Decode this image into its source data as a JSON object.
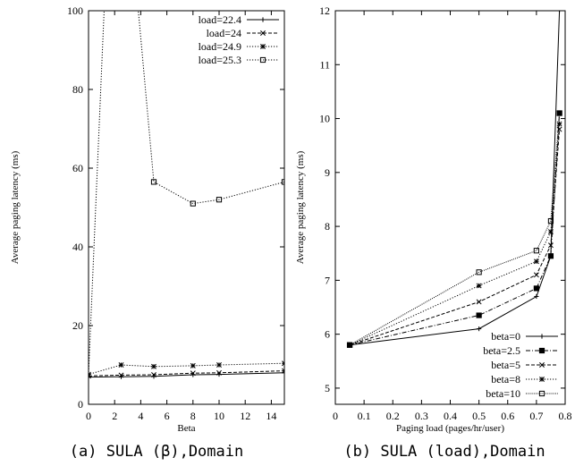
{
  "chart_data": [
    {
      "type": "line",
      "caption": "(a) SULA (β),Domain",
      "xlabel": "Beta",
      "ylabel": "Average paging latency (ms)",
      "xlim": [
        0,
        15
      ],
      "ylim": [
        0,
        100
      ],
      "xticks": [
        0,
        2,
        4,
        6,
        8,
        10,
        12,
        14
      ],
      "yticks": [
        0,
        20,
        40,
        60,
        80,
        100
      ],
      "grid": false,
      "legend_position": "top-right",
      "series": [
        {
          "name": "load=22.4",
          "marker": "plus",
          "dash": "solid",
          "x": [
            0,
            2.5,
            5,
            8,
            10,
            15
          ],
          "y": [
            6.9,
            7.0,
            7.1,
            7.5,
            7.6,
            8.0
          ]
        },
        {
          "name": "load=24",
          "marker": "cross",
          "dash": "dashed",
          "x": [
            0,
            2.5,
            5,
            8,
            10,
            15
          ],
          "y": [
            7.2,
            7.4,
            7.5,
            7.9,
            8.0,
            8.5
          ]
        },
        {
          "name": "load=24.9",
          "marker": "star",
          "dash": "dotted",
          "x": [
            0,
            2.5,
            5,
            8,
            10,
            15
          ],
          "y": [
            7.6,
            10.0,
            9.6,
            9.8,
            10.0,
            10.4
          ]
        },
        {
          "name": "load=25.3",
          "marker": "square",
          "dash": "dotted",
          "x": [
            5,
            8,
            10,
            15
          ],
          "y": [
            56.5,
            51.0,
            52.0,
            56.5
          ]
        }
      ]
    },
    {
      "type": "line",
      "caption": "(b) SULA (load),Domain",
      "xlabel": "Paging load (pages/hr/user)",
      "ylabel": "Average paging latency (ms)",
      "xlim": [
        0,
        0.8
      ],
      "ylim": [
        4.7,
        12
      ],
      "xticks": [
        0,
        0.1,
        0.2,
        0.3,
        0.4,
        0.5,
        0.6,
        0.7,
        0.8
      ],
      "yticks": [
        5,
        6,
        7,
        8,
        9,
        10,
        11,
        12
      ],
      "grid": false,
      "legend_position": "bottom-right",
      "series": [
        {
          "name": "beta=0",
          "marker": "plus",
          "dash": "solid",
          "x": [
            0.05,
            0.5,
            0.7,
            0.75,
            0.78
          ],
          "y": [
            5.8,
            6.1,
            6.7,
            7.45,
            12.0
          ]
        },
        {
          "name": "beta=2.5",
          "marker": "filledsquare",
          "dash": "dashdot",
          "x": [
            0.05,
            0.5,
            0.7,
            0.75,
            0.78
          ],
          "y": [
            5.8,
            6.35,
            6.85,
            7.45,
            10.1
          ]
        },
        {
          "name": "beta=5",
          "marker": "cross",
          "dash": "dashed",
          "x": [
            0.05,
            0.5,
            0.7,
            0.75,
            0.78
          ],
          "y": [
            5.8,
            6.6,
            7.1,
            7.65,
            9.8
          ]
        },
        {
          "name": "beta=8",
          "marker": "star",
          "dash": "dotted",
          "x": [
            0.05,
            0.5,
            0.7,
            0.75,
            0.78
          ],
          "y": [
            5.8,
            6.9,
            7.35,
            7.9,
            9.9
          ]
        },
        {
          "name": "beta=10",
          "marker": "square",
          "dash": "finedot",
          "x": [
            0.05,
            0.5,
            0.7,
            0.75,
            0.78
          ],
          "y": [
            5.8,
            7.15,
            7.55,
            8.1,
            10.1
          ]
        }
      ]
    }
  ]
}
